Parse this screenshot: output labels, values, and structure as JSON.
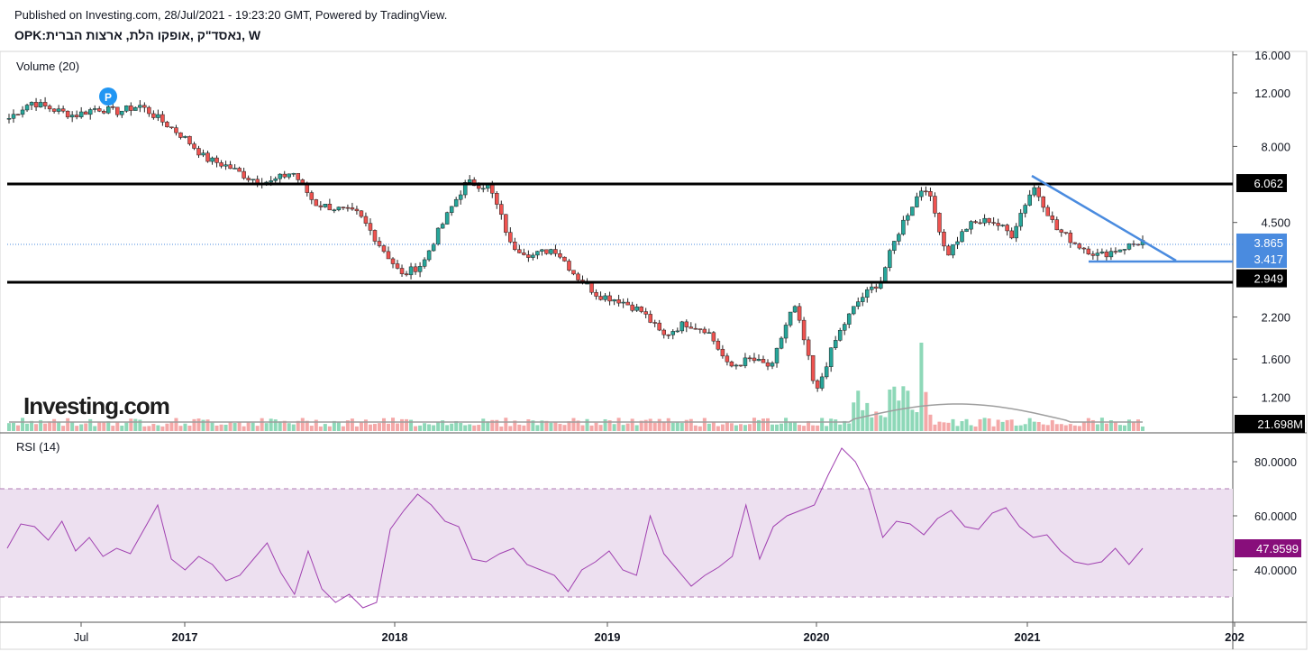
{
  "header": {
    "published": "Published on Investing.com, 28/Jul/2021 - 19:23:20 GMT, Powered by TradingView.",
    "symbol": "OPK:נאסד\"ק ,אופקו הלת, ארצות הברית, W"
  },
  "chart_data": [
    {
      "type": "candlestick",
      "title": "",
      "volume_label": "Volume (20)",
      "watermark": "Investing.com",
      "marker_label": "P",
      "y_ticks": [
        "16.000",
        "12.000",
        "8.000",
        "4.500",
        "2.200",
        "1.600",
        "1.200"
      ],
      "price_levels": [
        {
          "label": "6.062",
          "kind": "horizontal-black"
        },
        {
          "label": "3.865",
          "kind": "last-price"
        },
        {
          "label": "3.417",
          "kind": "horizontal-blue"
        },
        {
          "label": "2.949",
          "kind": "horizontal-black"
        }
      ],
      "volume_value": "21.698M",
      "x_ticks": [
        "Jul",
        "2017",
        "2018",
        "2019",
        "2020",
        "2021",
        "202"
      ],
      "series": [
        {
          "name": "OPK",
          "values": [
            9.9,
            11.2,
            10.6,
            10.1,
            10.7,
            10.4,
            10.9,
            9.7,
            8.6,
            7.3,
            6.9,
            6.3,
            6.1,
            6.6,
            5.2,
            5.0,
            4.8,
            3.8,
            3.0,
            3.3,
            4.6,
            6.1,
            5.9,
            3.8,
            3.5,
            3.7,
            3.0,
            2.6,
            2.5,
            2.3,
            1.9,
            2.1,
            2.0,
            1.5,
            1.6,
            1.5,
            2.4,
            1.2,
            1.9,
            2.5,
            2.9,
            4.5,
            6.0,
            3.5,
            4.4,
            4.6,
            4.1,
            5.9,
            4.3,
            3.8,
            3.5,
            3.7,
            3.9
          ]
        }
      ],
      "candle_count": 252,
      "colors": {
        "up": "#26a69a",
        "down": "#ef5350",
        "level": "#000000",
        "trend": "#4a8bdf",
        "last": "#4a8bdf"
      }
    },
    {
      "type": "line",
      "title": "RSI (14)",
      "y_ticks": [
        "80.0000",
        "60.0000",
        "40.0000"
      ],
      "band": [
        30,
        70
      ],
      "last_value": "47.9599",
      "series": [
        {
          "name": "RSI",
          "values": [
            48,
            57,
            56,
            51,
            58,
            47,
            52,
            45,
            48,
            46,
            55,
            64,
            44,
            40,
            45,
            42,
            36,
            38,
            44,
            50,
            39,
            31,
            47,
            33,
            28,
            31,
            26,
            28,
            55,
            62,
            68,
            64,
            58,
            56,
            44,
            43,
            46,
            48,
            42,
            40,
            38,
            32,
            40,
            43,
            47,
            40,
            38,
            60,
            46,
            40,
            34,
            38,
            41,
            45,
            64,
            44,
            56,
            60,
            62,
            64,
            75,
            85,
            80,
            70,
            52,
            58,
            57,
            53,
            59,
            62,
            56,
            55,
            61,
            63,
            56,
            52,
            53,
            47,
            43,
            42,
            43,
            48,
            42,
            48
          ]
        }
      ],
      "colors": {
        "line": "#9c27b0",
        "band": "#ede0f0",
        "label_bg": "#880e7b"
      }
    }
  ]
}
